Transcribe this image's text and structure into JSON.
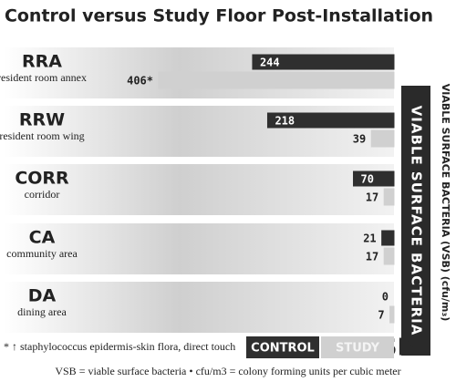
{
  "chart_data": {
    "type": "bar",
    "orientation": "horizontal",
    "title": "Control versus Study Floor Post-Installation",
    "categories": [
      "RRA",
      "RRW",
      "CORR",
      "CA",
      "DA"
    ],
    "category_descriptions": [
      "resident room annex",
      "resident room wing",
      "corridor",
      "community area",
      "dining area"
    ],
    "series": [
      {
        "name": "CONTROL",
        "color": "#2f2f2f",
        "values": [
          244,
          218,
          70,
          21,
          0
        ]
      },
      {
        "name": "STUDY",
        "color": "#d0d0d0",
        "values": [
          406,
          39,
          17,
          17,
          7
        ],
        "value_labels": [
          "406*",
          "39",
          "17",
          "17",
          "7"
        ]
      }
    ],
    "axis_box_label": "VIABLE SURFACE BACTERIA",
    "axis_label": "VIABLE SURFACE BACTERIA (VSB) (cfu/m₃)",
    "legend_suffix": "VSB",
    "footnote": "* ↑ staphylococcus epidermis-skin flora, direct touch",
    "note": "VSB = viable surface bacteria  •  cfu/m3 = colony forming units per cubic meter"
  }
}
